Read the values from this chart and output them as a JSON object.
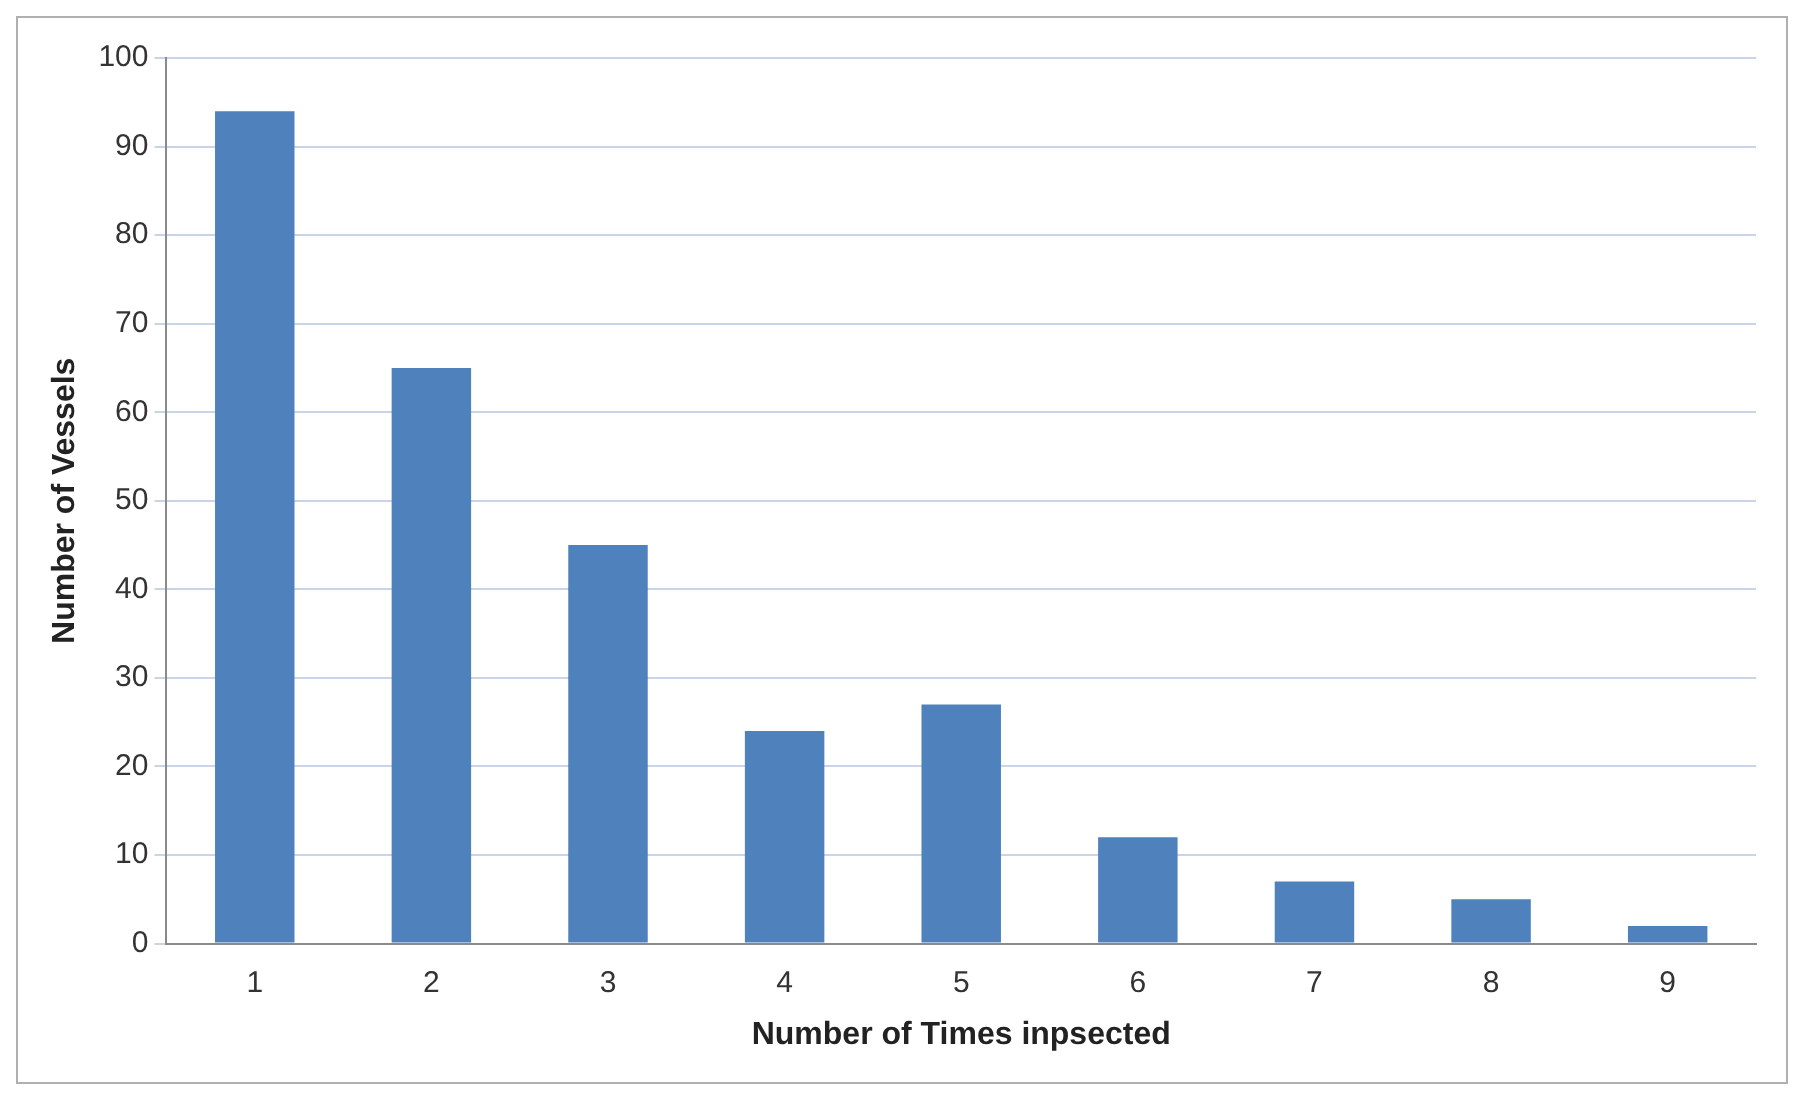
{
  "chart_data": {
    "type": "bar",
    "xlabel": "Number of Times inpsected",
    "ylabel": "Number of Vessels",
    "categories": [
      "1",
      "2",
      "3",
      "4",
      "5",
      "6",
      "7",
      "8",
      "9"
    ],
    "values": [
      94,
      65,
      45,
      24,
      27,
      12,
      7,
      5,
      2
    ],
    "color": "#4f81bd",
    "ylim": [
      0,
      100
    ],
    "yticks": [
      0,
      10,
      20,
      30,
      40,
      50,
      60,
      70,
      80,
      90,
      100
    ],
    "grid": "y",
    "legend": false
  }
}
